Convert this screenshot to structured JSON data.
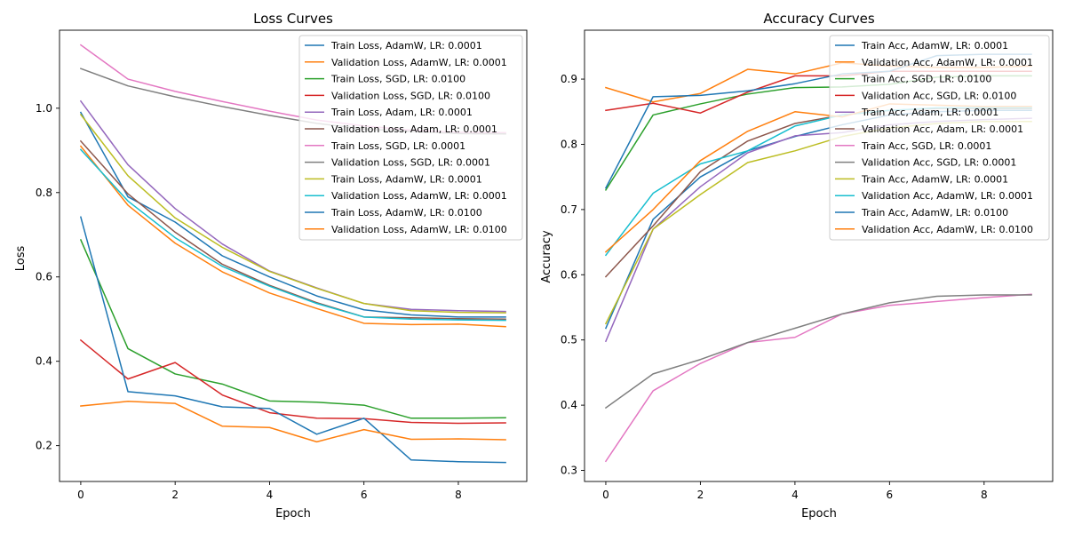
{
  "chart_data": [
    {
      "type": "line",
      "title": "Loss Curves",
      "xlabel": "Epoch",
      "ylabel": "Loss",
      "xlim": [
        -0.45,
        9.45
      ],
      "ylim": [
        0.115,
        1.185
      ],
      "xticks": [
        0,
        2,
        4,
        6,
        8
      ],
      "yticks": [
        0.2,
        0.4,
        0.6,
        0.8,
        1.0
      ],
      "ytick_labels": [
        "0.2",
        "0.4",
        "0.6",
        "0.8",
        "1.0"
      ],
      "grid": false,
      "legend_position": "top-right",
      "x": [
        0,
        1,
        2,
        3,
        4,
        5,
        6,
        7,
        8,
        9
      ],
      "series": [
        {
          "name": "Train Loss, AdamW, LR: 0.0001",
          "color": "#1f77b4",
          "values": [
            0.99,
            0.79,
            0.73,
            0.65,
            0.6,
            0.555,
            0.522,
            0.51,
            0.505,
            0.505
          ]
        },
        {
          "name": "Validation Loss, AdamW, LR: 0.0001",
          "color": "#ff7f0e",
          "values": [
            0.91,
            0.77,
            0.68,
            0.612,
            0.562,
            0.525,
            0.49,
            0.487,
            0.488,
            0.482
          ]
        },
        {
          "name": "Train Loss, SGD, LR: 0.0100",
          "color": "#2ca02c",
          "values": [
            0.688,
            0.43,
            0.37,
            0.346,
            0.306,
            0.303,
            0.296,
            0.265,
            0.265,
            0.266
          ]
        },
        {
          "name": "Validation Loss, SGD, LR: 0.0100",
          "color": "#d62728",
          "values": [
            0.45,
            0.358,
            0.397,
            0.32,
            0.278,
            0.265,
            0.264,
            0.255,
            0.253,
            0.254
          ]
        },
        {
          "name": "Train Loss, Adam, LR: 0.0001",
          "color": "#9467bd",
          "values": [
            1.017,
            0.866,
            0.762,
            0.678,
            0.614,
            0.574,
            0.537,
            0.523,
            0.52,
            0.518
          ]
        },
        {
          "name": "Validation Loss, Adam, LR: 0.0001",
          "color": "#8c564b",
          "values": [
            0.922,
            0.797,
            0.706,
            0.63,
            0.58,
            0.539,
            0.505,
            0.503,
            0.501,
            0.5
          ]
        },
        {
          "name": "Train Loss, SGD, LR: 0.0001",
          "color": "#e377c2",
          "values": [
            1.15,
            1.069,
            1.04,
            1.016,
            0.993,
            0.972,
            0.958,
            0.948,
            0.943,
            0.942
          ]
        },
        {
          "name": "Validation Loss, SGD, LR: 0.0001",
          "color": "#7f7f7f",
          "values": [
            1.094,
            1.053,
            1.027,
            1.004,
            0.983,
            0.964,
            0.951,
            0.945,
            0.94,
            0.939
          ]
        },
        {
          "name": "Train Loss, AdamW, LR: 0.0001",
          "color": "#bcbd22",
          "values": [
            0.985,
            0.84,
            0.74,
            0.67,
            0.613,
            0.573,
            0.537,
            0.52,
            0.516,
            0.515
          ]
        },
        {
          "name": "Validation Loss, AdamW, LR: 0.0001",
          "color": "#17becf",
          "values": [
            0.902,
            0.78,
            0.693,
            0.625,
            0.578,
            0.537,
            0.505,
            0.5,
            0.498,
            0.497
          ]
        },
        {
          "name": "Train Loss, AdamW, LR: 0.0100",
          "color": "#1f77b4",
          "values": [
            0.742,
            0.328,
            0.318,
            0.292,
            0.288,
            0.227,
            0.265,
            0.166,
            0.162,
            0.16
          ]
        },
        {
          "name": "Validation Loss, AdamW, LR: 0.0100",
          "color": "#ff7f0e",
          "values": [
            0.294,
            0.305,
            0.3,
            0.246,
            0.243,
            0.209,
            0.238,
            0.215,
            0.216,
            0.214
          ]
        }
      ]
    },
    {
      "type": "line",
      "title": "Accuracy Curves",
      "xlabel": "Epoch",
      "ylabel": "Accuracy",
      "xlim": [
        -0.45,
        9.45
      ],
      "ylim": [
        0.283,
        0.975
      ],
      "xticks": [
        0,
        2,
        4,
        6,
        8
      ],
      "yticks": [
        0.3,
        0.4,
        0.5,
        0.6,
        0.7,
        0.8,
        0.9
      ],
      "ytick_labels": [
        "0.3",
        "0.4",
        "0.5",
        "0.6",
        "0.7",
        "0.8",
        "0.9"
      ],
      "grid": false,
      "legend_position": "top-right",
      "x": [
        0,
        1,
        2,
        3,
        4,
        5,
        6,
        7,
        8,
        9
      ],
      "series": [
        {
          "name": "Train Acc, AdamW, LR: 0.0001",
          "color": "#1f77b4",
          "values": [
            0.518,
            0.685,
            0.75,
            0.79,
            0.812,
            0.83,
            0.845,
            0.85,
            0.852,
            0.852
          ]
        },
        {
          "name": "Validation Acc, AdamW, LR: 0.0001",
          "color": "#ff7f0e",
          "values": [
            0.887,
            0.865,
            0.878,
            0.915,
            0.908,
            0.925,
            0.92,
            0.918,
            0.918,
            0.92
          ]
        },
        {
          "name": "Train Acc, SGD, LR: 0.0100",
          "color": "#2ca02c",
          "values": [
            0.73,
            0.845,
            0.862,
            0.877,
            0.887,
            0.888,
            0.892,
            0.903,
            0.905,
            0.905
          ]
        },
        {
          "name": "Validation Acc, SGD, LR: 0.0100",
          "color": "#d62728",
          "values": [
            0.852,
            0.863,
            0.848,
            0.88,
            0.905,
            0.905,
            0.912,
            0.912,
            0.912,
            0.912
          ]
        },
        {
          "name": "Train Acc, Adam, LR: 0.0001",
          "color": "#9467bd",
          "values": [
            0.498,
            0.67,
            0.735,
            0.787,
            0.813,
            0.818,
            0.83,
            0.835,
            0.838,
            0.84
          ]
        },
        {
          "name": "Validation Acc, Adam, LR: 0.0001",
          "color": "#8c564b",
          "values": [
            0.597,
            0.675,
            0.758,
            0.805,
            0.832,
            0.845,
            0.852,
            0.855,
            0.855,
            0.855
          ]
        },
        {
          "name": "Train Acc, SGD, LR: 0.0001",
          "color": "#e377c2",
          "values": [
            0.314,
            0.422,
            0.464,
            0.496,
            0.504,
            0.54,
            0.553,
            0.559,
            0.565,
            0.57
          ]
        },
        {
          "name": "Validation Acc, SGD, LR: 0.0001",
          "color": "#7f7f7f",
          "values": [
            0.396,
            0.448,
            0.47,
            0.496,
            0.518,
            0.54,
            0.557,
            0.567,
            0.569,
            0.569
          ]
        },
        {
          "name": "Train Acc, AdamW, LR: 0.0001",
          "color": "#bcbd22",
          "values": [
            0.525,
            0.67,
            0.723,
            0.772,
            0.79,
            0.812,
            0.825,
            0.832,
            0.835,
            0.835
          ]
        },
        {
          "name": "Validation Acc, AdamW, LR: 0.0001",
          "color": "#17becf",
          "values": [
            0.63,
            0.725,
            0.77,
            0.79,
            0.828,
            0.845,
            0.852,
            0.856,
            0.856,
            0.856
          ]
        },
        {
          "name": "Train Acc, AdamW, LR: 0.0100",
          "color": "#1f77b4",
          "values": [
            0.733,
            0.873,
            0.875,
            0.882,
            0.893,
            0.908,
            0.912,
            0.936,
            0.938,
            0.938
          ]
        },
        {
          "name": "Validation Acc, AdamW, LR: 0.0100",
          "color": "#ff7f0e",
          "values": [
            0.635,
            0.7,
            0.775,
            0.82,
            0.85,
            0.842,
            0.862,
            0.86,
            0.858,
            0.858
          ]
        }
      ]
    }
  ]
}
